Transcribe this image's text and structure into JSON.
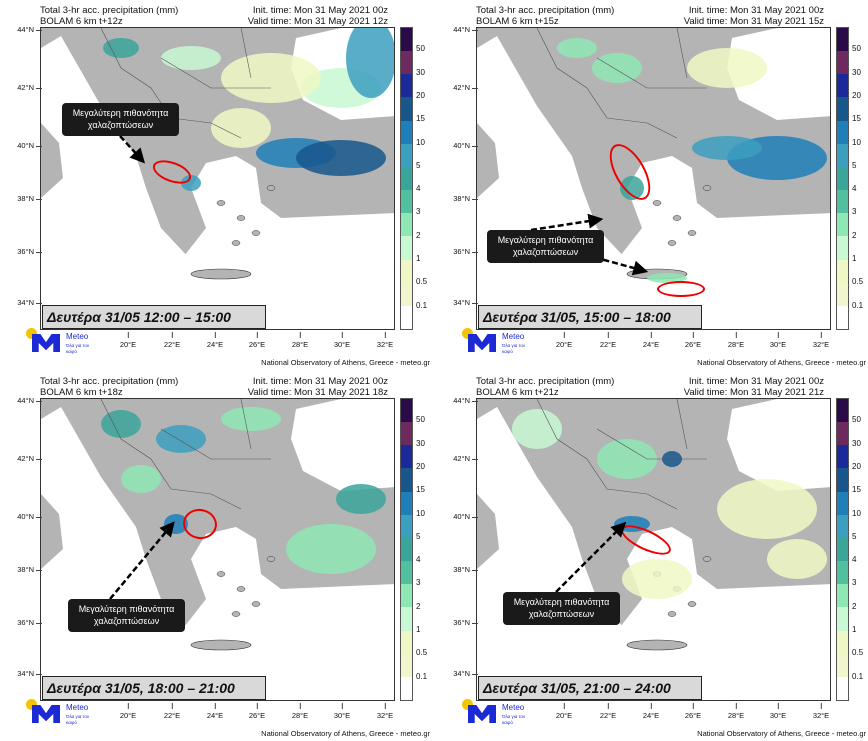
{
  "panels": [
    {
      "title": "Total 3-hr acc. precipitation (mm)",
      "model": "BOLAM 6 km t+12z",
      "init_time": "Init. time: Mon 31 May 2021 00z",
      "valid_time": "Valid time: Mon 31 May 2021 12z",
      "day_label": "Δευτέρα 31/05 12:00 – 15:00",
      "callout": "Μεγαλύτερη πιθανότητα χαλαζοπτώσεων"
    },
    {
      "title": "Total 3-hr acc. precipitation (mm)",
      "model": "BOLAM 6 km t+15z",
      "init_time": "Init. time: Mon 31 May 2021 00z",
      "valid_time": "Valid time: Mon 31 May 2021 15z",
      "day_label": "Δευτέρα 31/05, 15:00 – 18:00",
      "callout": "Μεγαλύτερη πιθανότητα χαλαζοπτώσεων"
    },
    {
      "title": "Total 3-hr acc. precipitation (mm)",
      "model": "BOLAM 6 km t+18z",
      "init_time": "Init. time: Mon 31 May 2021 00z",
      "valid_time": "Valid time: Mon 31 May 2021 18z",
      "day_label": "Δευτέρα 31/05, 18:00 – 21:00",
      "callout": "Μεγαλύτερη πιθανότητα χαλαζοπτώσεων"
    },
    {
      "title": "Total 3-hr acc. precipitation (mm)",
      "model": "BOLAM 6 km t+21z",
      "init_time": "Init. time: Mon 31 May 2021 00z",
      "valid_time": "Valid time: Mon 31 May 2021 21z",
      "day_label": "Δευτέρα 31/05, 21:00 – 24:00",
      "callout": "Μεγαλύτερη πιθανότητα χαλαζοπτώσεων"
    }
  ],
  "lat_labels": [
    "44°N",
    "42°N",
    "40°N",
    "38°N",
    "36°N",
    "34°N"
  ],
  "lon_labels": [
    "20°E",
    "22°E",
    "24°E",
    "26°E",
    "28°E",
    "30°E",
    "32°E"
  ],
  "colorbar": {
    "levels": [
      "50",
      "30",
      "20",
      "15",
      "10",
      "5",
      "4",
      "3",
      "2",
      "1",
      "0.5",
      "0.1"
    ],
    "colors": [
      "#2b0a4a",
      "#6e2a5e",
      "#1a2a9a",
      "#17578c",
      "#1f7fb8",
      "#3c9fc0",
      "#3ba59a",
      "#52bf9f",
      "#8ee8b4",
      "#c8f8d4",
      "#eef8c4",
      "#f1f6cc",
      "#ffffff"
    ]
  },
  "logo": {
    "name": "Meteo",
    "tagline": "Όλα για τον καιρό"
  },
  "footer": "National Observatory of Athens, Greece - meteo.gr"
}
